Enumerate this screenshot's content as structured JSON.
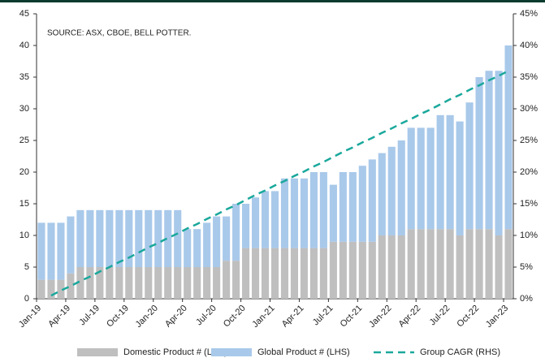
{
  "chart_data": {
    "type": "bar",
    "annotation": "SOURCE: ASX, CBOE, BELL POTTER.",
    "categories": [
      "Jan-19",
      null,
      null,
      "Apr-19",
      null,
      null,
      "Jul-19",
      null,
      null,
      "Oct-19",
      null,
      null,
      "Jan-20",
      null,
      null,
      "Apr-20",
      null,
      null,
      "Jul-20",
      null,
      null,
      "Oct-20",
      null,
      null,
      "Jan-21",
      null,
      null,
      "Apr-21",
      null,
      null,
      "Jul-21",
      null,
      null,
      "Oct-21",
      null,
      null,
      "Jan-22",
      null,
      null,
      "Apr-22",
      null,
      null,
      "Jul-22",
      null,
      null,
      "Oct-22",
      null,
      null,
      "Jan-23"
    ],
    "series": [
      {
        "name": "Domestic Product # (LHS)",
        "color": "#bfbfbf",
        "values": [
          3,
          3,
          3,
          4,
          5,
          5,
          5,
          5,
          5,
          5,
          5,
          5,
          5,
          5,
          5,
          5,
          5,
          5,
          5,
          6,
          6,
          8,
          8,
          8,
          8,
          8,
          8,
          8,
          8,
          8,
          9,
          9,
          9,
          9,
          9,
          10,
          10,
          10,
          11,
          11,
          11,
          11,
          11,
          10,
          11,
          11,
          11,
          10,
          11
        ]
      },
      {
        "name": "Global Product # (LHS)",
        "color": "#a9c9ea",
        "values": [
          9,
          9,
          9,
          9,
          9,
          9,
          9,
          9,
          9,
          9,
          9,
          9,
          9,
          9,
          9,
          6,
          6,
          7,
          8,
          7,
          9,
          7,
          8,
          9,
          9,
          11,
          11,
          11,
          12,
          12,
          9,
          11,
          11,
          12,
          13,
          13,
          14,
          15,
          16,
          16,
          16,
          18,
          18,
          18,
          20,
          24,
          25,
          26,
          29
        ]
      },
      {
        "name": "Group CAGR (RHS)",
        "color": "#1aa89c",
        "type": "line",
        "dashed": true,
        "axis": "y2",
        "values": [
          null,
          0.5,
          1.3,
          2.0,
          2.8,
          3.5,
          4.3,
          5.0,
          5.8,
          6.5,
          7.3,
          8.1,
          8.8,
          9.6,
          10.3,
          11.1,
          11.8,
          12.6,
          13.3,
          14.1,
          14.8,
          15.6,
          16.4,
          17.1,
          17.9,
          18.6,
          19.4,
          20.1,
          20.9,
          21.6,
          22.4,
          23.2,
          23.9,
          24.7,
          25.4,
          26.2,
          26.9,
          27.7,
          28.4,
          29.2,
          29.9,
          30.7,
          31.5,
          32.2,
          33.0,
          33.7,
          34.5,
          35.2,
          36.0
        ]
      }
    ],
    "stacked": true,
    "ylim": [
      0,
      45
    ],
    "yticks": [
      0,
      5,
      10,
      15,
      20,
      25,
      30,
      35,
      40,
      45
    ],
    "y2lim": [
      0,
      45
    ],
    "y2ticks": [
      {
        "value": 0,
        "label": "0%"
      },
      {
        "value": 5,
        "label": "5%"
      },
      {
        "value": 10,
        "label": "10%"
      },
      {
        "value": 15,
        "label": "15%"
      },
      {
        "value": 20,
        "label": "20%"
      },
      {
        "value": 25,
        "label": "25%"
      },
      {
        "value": 30,
        "label": "30%"
      },
      {
        "value": 35,
        "label": "35%"
      },
      {
        "value": 40,
        "label": "40%"
      },
      {
        "value": 45,
        "label": "45%"
      }
    ],
    "legend": "bottom"
  }
}
